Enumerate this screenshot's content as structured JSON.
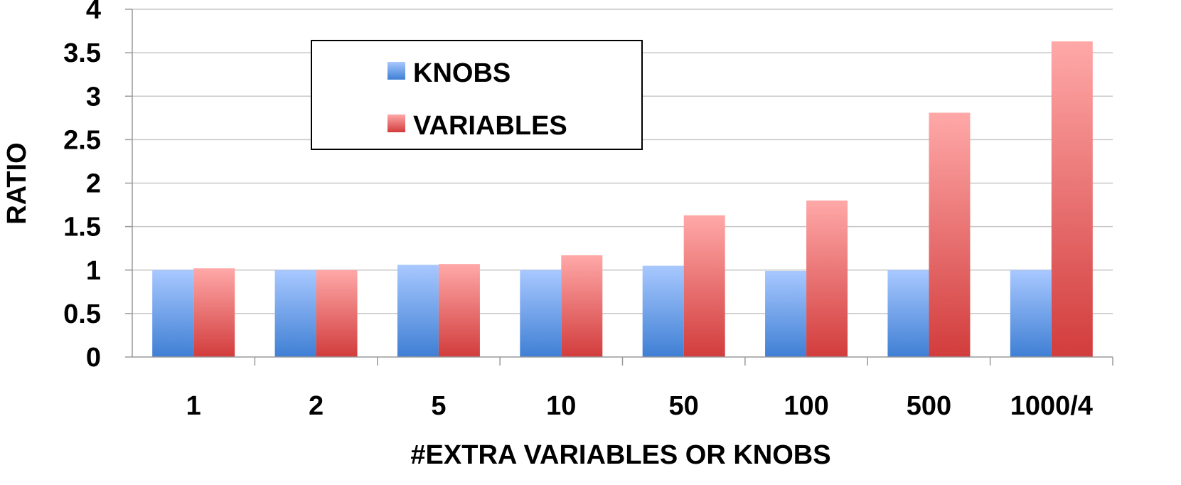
{
  "chart_data": {
    "type": "bar",
    "categories": [
      "1",
      "2",
      "5",
      "10",
      "50",
      "100",
      "500",
      "1000/4"
    ],
    "series": [
      {
        "name": "KNOBS",
        "values": [
          1.0,
          1.0,
          1.06,
          1.0,
          1.05,
          0.99,
          1.0,
          1.0
        ],
        "color": "#6a9de0"
      },
      {
        "name": "VARIABLES",
        "values": [
          1.02,
          1.0,
          1.07,
          1.17,
          1.63,
          1.8,
          2.81,
          3.63
        ],
        "color": "#e26a6a"
      }
    ],
    "title": "",
    "xlabel": "#EXTRA VARIABLES OR KNOBS",
    "ylabel": "RATIO",
    "ylim": [
      0,
      4
    ],
    "yticks": [
      "0",
      "0.5",
      "1",
      "1.5",
      "2",
      "2.5",
      "3",
      "3.5",
      "4"
    ],
    "grid": true,
    "legend_position": "top-left-inside"
  }
}
